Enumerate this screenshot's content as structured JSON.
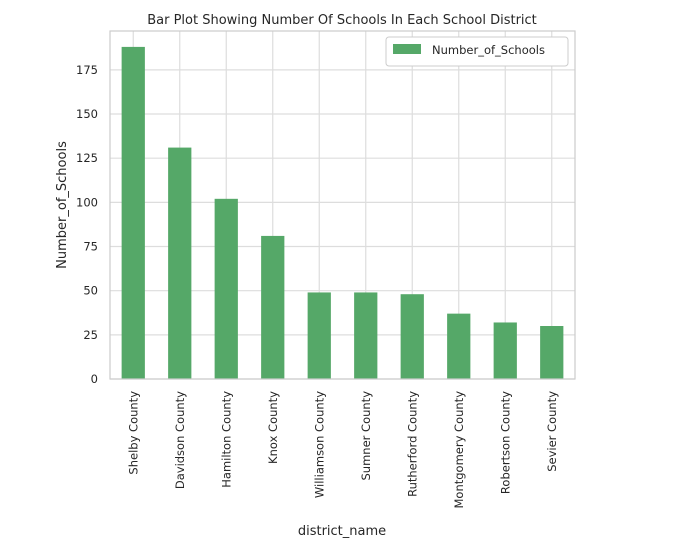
{
  "chart_data": {
    "type": "bar",
    "title": "Bar Plot Showing Number Of Schools In Each School District",
    "xlabel": "district_name",
    "ylabel": "Number_of_Schools",
    "categories": [
      "Shelby County",
      "Davidson County",
      "Hamilton County",
      "Knox County",
      "Williamson County",
      "Sumner County",
      "Rutherford County",
      "Montgomery County",
      "Robertson County",
      "Sevier County"
    ],
    "series": [
      {
        "name": "Number_of_Schools",
        "values": [
          188,
          131,
          102,
          81,
          49,
          49,
          48,
          37,
          32,
          30
        ],
        "color": "#55a868"
      }
    ],
    "yticks": [
      0,
      25,
      50,
      75,
      100,
      125,
      150,
      175
    ],
    "ylim": [
      0,
      197
    ],
    "grid": true,
    "legend_position": "top-right",
    "grid_color": "#dddddd",
    "frame_color": "#cccccc",
    "background": "#ffffff"
  }
}
